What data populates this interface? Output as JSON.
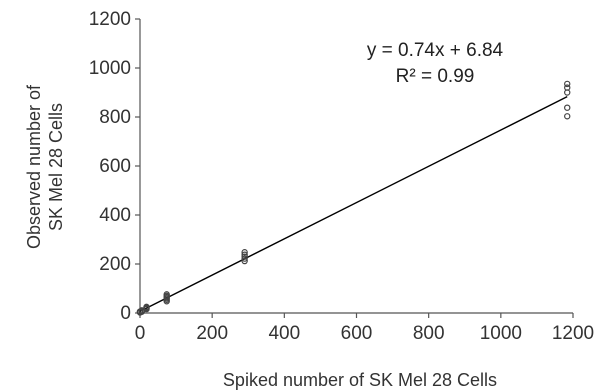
{
  "chart_data": {
    "type": "scatter",
    "title": "",
    "xlabel": "Spiked number of SK Mel 28 Cells",
    "ylabel_lines": [
      "Observed number of",
      "SK Mel 28 Cells"
    ],
    "xlim": [
      0,
      1200
    ],
    "ylim": [
      0,
      1200
    ],
    "x_ticks": [
      0,
      200,
      400,
      600,
      800,
      1000,
      1200
    ],
    "y_ticks": [
      0,
      200,
      400,
      600,
      800,
      1000,
      1200
    ],
    "x_tick_labels": [
      "0",
      "200",
      "400",
      "600",
      "800",
      "1000",
      "1200"
    ],
    "y_tick_labels": [
      "0",
      "200",
      "400",
      "600",
      "800",
      "1000",
      "1200"
    ],
    "grid": false,
    "legend": "none",
    "points": {
      "x": [
        0,
        0,
        0,
        5,
        5,
        5,
        18,
        18,
        18,
        18,
        74,
        74,
        74,
        74,
        74,
        74,
        290,
        290,
        290,
        290,
        290,
        1184,
        1184,
        1184,
        1184,
        1184
      ],
      "y": [
        2,
        4,
        6,
        5,
        8,
        11,
        16,
        19,
        22,
        25,
        48,
        54,
        60,
        65,
        70,
        76,
        212,
        222,
        230,
        238,
        248,
        803,
        838,
        900,
        920,
        935
      ]
    },
    "trendline": {
      "slope": 0.74,
      "intercept": 6.84,
      "x_range": [
        0,
        1184
      ],
      "equation_label": "y = 0.74x + 6.84",
      "r2_label": "R² = 0.99"
    }
  }
}
